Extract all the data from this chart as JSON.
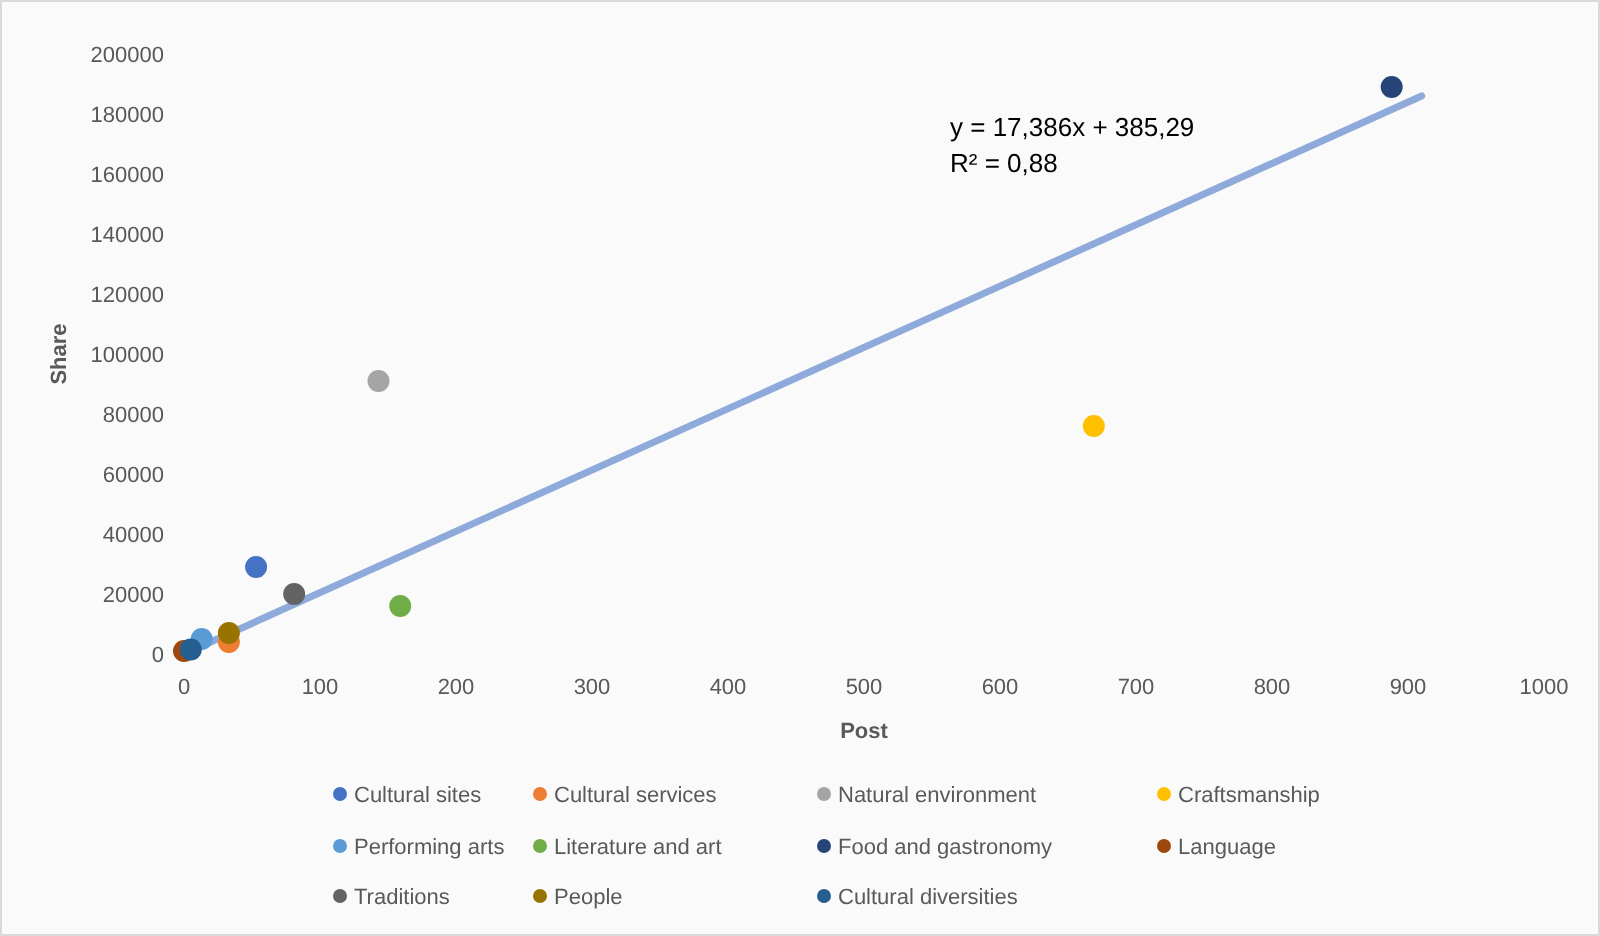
{
  "chart_data": {
    "type": "scatter",
    "xlabel": "Post",
    "ylabel": "Share",
    "xlim": [
      0,
      1000
    ],
    "xticks": [
      0,
      100,
      200,
      300,
      400,
      500,
      600,
      700,
      800,
      900,
      1000
    ],
    "ylim": [
      0,
      200000
    ],
    "yticks": [
      0,
      20000,
      40000,
      60000,
      80000,
      100000,
      120000,
      140000,
      160000,
      180000,
      200000
    ],
    "grid": false,
    "legend": "bottom",
    "marker": "circle",
    "annotations": [
      "y = 17,386x + 385,29",
      "R² = 0,88"
    ],
    "series": [
      {
        "type": "line",
        "color": "#8eaadb",
        "x": [
          0,
          910
        ],
        "values": [
          0,
          186000
        ],
        "line_style": "solid",
        "marker": "none"
      },
      {
        "name": "Cultural sites",
        "color": "#4472c4",
        "x": [
          53
        ],
        "values": [
          29000
        ]
      },
      {
        "name": "Cultural services",
        "color": "#ed7d31",
        "x": [
          33
        ],
        "values": [
          4000
        ]
      },
      {
        "name": "Natural environment",
        "color": "#a5a5a5",
        "x": [
          143
        ],
        "values": [
          91000
        ]
      },
      {
        "name": "Craftsmanship",
        "color": "#ffc000",
        "x": [
          669
        ],
        "values": [
          76000
        ]
      },
      {
        "name": "Performing arts",
        "color": "#5b9bd5",
        "x": [
          13
        ],
        "values": [
          5000
        ]
      },
      {
        "name": "Literature and art",
        "color": "#70ad47",
        "x": [
          159
        ],
        "values": [
          16000
        ]
      },
      {
        "name": "Food and gastronomy",
        "color": "#264478",
        "x": [
          888
        ],
        "values": [
          189000
        ]
      },
      {
        "name": "Language",
        "color": "#9e480e",
        "x": [
          0
        ],
        "values": [
          1000
        ]
      },
      {
        "name": "Traditions",
        "color": "#636363",
        "x": [
          81
        ],
        "values": [
          20000
        ]
      },
      {
        "name": "People",
        "color": "#997300",
        "x": [
          33
        ],
        "values": [
          7000
        ]
      },
      {
        "name": "Cultural diversities",
        "color": "#255e91",
        "x": [
          5
        ],
        "values": [
          1500
        ]
      }
    ]
  }
}
